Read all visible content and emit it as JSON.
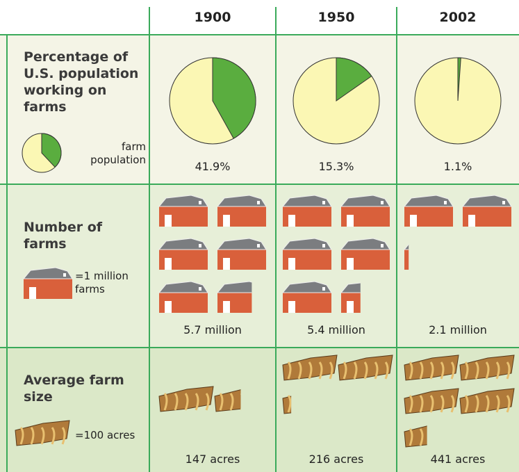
{
  "columns": [
    "1900",
    "1950",
    "2002"
  ],
  "rows": [
    {
      "label": "Percentage of U.S. population working on farms",
      "legend": "farm population",
      "values": [
        41.9,
        15.3,
        1.1
      ],
      "value_labels": [
        "41.9%",
        "15.3%",
        "1.1%"
      ],
      "color": "#5aad3f"
    },
    {
      "label": "Number of farms",
      "legend": "=1 million farms",
      "values": [
        5.7,
        5.4,
        2.1
      ],
      "value_labels": [
        "5.7 million",
        "5.4 million",
        "2.1 million"
      ],
      "color": "#d9603b"
    },
    {
      "label": "Average farm size",
      "legend": "=100 acres",
      "values": [
        147,
        216,
        441
      ],
      "value_labels": [
        "147 acres",
        "216 acres",
        "441 acres"
      ],
      "color": "#b07a3a"
    }
  ]
}
